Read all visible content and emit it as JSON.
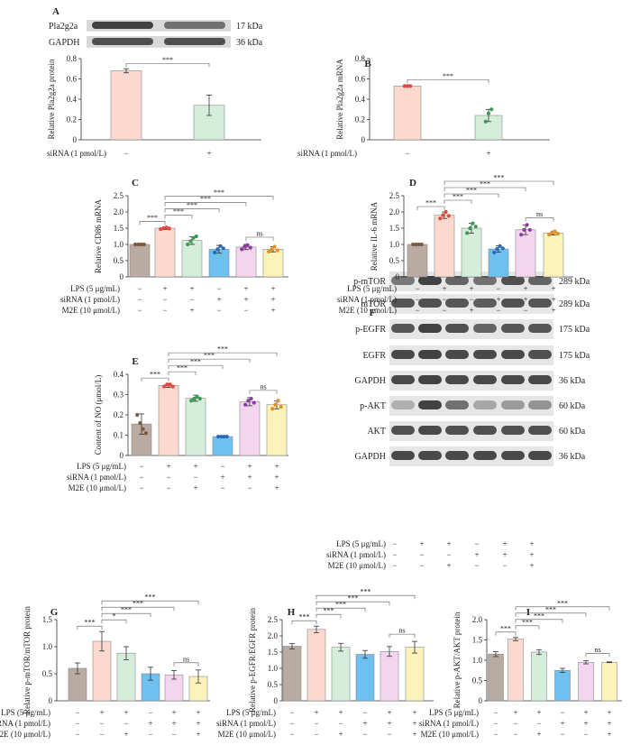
{
  "colors": {
    "ctrl": "#b9aba1",
    "lps": "#fbd9cf",
    "lps_m2e": "#d5eddb",
    "sirna": "#6ec0ee",
    "sirna_lps": "#f3d6ee",
    "sirna_lps_m2e": "#fbf3b9",
    "bracket": "#555555"
  },
  "panel_labels": {
    "A": "A",
    "B": "B",
    "C": "C",
    "D": "D",
    "E": "E",
    "F": "F",
    "G": "G",
    "H": "H",
    "I": "I"
  },
  "blot_A": {
    "bands": [
      {
        "label": "Pla2g2a",
        "kda": "17 kDa"
      },
      {
        "label": "GAPDH",
        "kda": "36 kDa"
      }
    ]
  },
  "blot_F": {
    "bands": [
      {
        "label": "p-mTOR",
        "kda": "289 kDa"
      },
      {
        "label": "mTOR",
        "kda": "289 kDa"
      },
      {
        "label": "p-EGFR",
        "kda": "175 kDa"
      },
      {
        "label": "EGFR",
        "kda": "175 kDa"
      },
      {
        "label": "GAPDH",
        "kda": "36 kDa"
      },
      {
        "label": "p-AKT",
        "kda": "60 kDa"
      },
      {
        "label": "AKT",
        "kda": "60 kDa"
      },
      {
        "label": "GAPDH",
        "kda": "36 kDa"
      }
    ]
  },
  "condition_rows": {
    "sirna_only": {
      "label": "siRNA (1 pmol/L)",
      "signs": [
        "−",
        "+"
      ]
    },
    "six": [
      {
        "label": "LPS (5 μg/mL)",
        "signs": [
          "−",
          "+",
          "+",
          "−",
          "+",
          "+"
        ]
      },
      {
        "label": "siRNA (1 pmol/L)",
        "signs": [
          "−",
          "−",
          "−",
          "+",
          "+",
          "+"
        ]
      },
      {
        "label": "M2E (10 μmol/L)",
        "signs": [
          "−",
          "−",
          "+",
          "−",
          "−",
          "+"
        ]
      }
    ]
  },
  "chart_data": [
    {
      "id": "A",
      "type": "bar",
      "ylabel": "Relative Pla2g2a protein",
      "ylim": [
        0,
        0.8
      ],
      "yticks": [
        0,
        0.2,
        0.4,
        0.6,
        0.8
      ],
      "yticklabels": [
        "0",
        "0.2",
        "0.4",
        "0.6",
        "0.8"
      ],
      "values": [
        0.68,
        0.34
      ],
      "errors": [
        0.02,
        0.1
      ],
      "points": [],
      "brackets": [
        {
          "from": 0,
          "to": 1,
          "label": "***"
        }
      ]
    },
    {
      "id": "B",
      "type": "bar",
      "ylabel": "Relative Pla2g2a mRNA",
      "ylim": [
        0,
        0.8
      ],
      "yticks": [
        0,
        0.2,
        0.4,
        0.6,
        0.8
      ],
      "yticklabels": [
        "0",
        "0.2",
        "0.4",
        "0.6",
        "0.8"
      ],
      "values": [
        0.53,
        0.24
      ],
      "errors": [
        0.01,
        0.06
      ],
      "points": [
        [
          0.53,
          0.53,
          0.53
        ],
        [
          0.18,
          0.26,
          0.3
        ]
      ],
      "brackets": [
        {
          "from": 0,
          "to": 1,
          "label": "***"
        }
      ]
    },
    {
      "id": "C",
      "type": "bar",
      "ylabel": "Relative CD86 mRNA",
      "ylim": [
        0,
        2.5
      ],
      "yticks": [
        0,
        0.5,
        1.0,
        1.5,
        2.0,
        2.5
      ],
      "yticklabels": [
        "0",
        "0.5",
        "1.0",
        "1.5",
        "2.0",
        "2.5"
      ],
      "values": [
        1.0,
        1.5,
        1.12,
        0.85,
        0.92,
        0.85
      ],
      "errors": [
        0.01,
        0.04,
        0.12,
        0.12,
        0.08,
        0.08
      ],
      "points": [
        [
          1,
          1,
          1,
          1
        ],
        [
          1.47,
          1.5,
          1.52,
          1.49
        ],
        [
          1.0,
          1.1,
          1.2,
          1.25
        ],
        [
          0.75,
          0.85,
          0.95,
          0.88
        ],
        [
          0.85,
          0.93,
          0.98,
          0.9
        ],
        [
          0.78,
          0.85,
          0.93,
          0.82
        ]
      ],
      "brackets": [
        {
          "from": 0,
          "to": 1,
          "label": "***"
        },
        {
          "from": 1,
          "to": 2,
          "label": "***"
        },
        {
          "from": 1,
          "to": 3,
          "label": "***"
        },
        {
          "from": 1,
          "to": 4,
          "label": "***"
        },
        {
          "from": 1,
          "to": 5,
          "label": "***"
        },
        {
          "from": 4,
          "to": 5,
          "label": "ns"
        }
      ]
    },
    {
      "id": "D",
      "type": "bar",
      "ylabel": "Relative IL-6 mRNA",
      "ylim": [
        0,
        2.5
      ],
      "yticks": [
        0,
        0.5,
        1.0,
        1.5,
        2.0,
        2.5
      ],
      "yticklabels": [
        "0",
        "0.5",
        "1.0",
        "1.5",
        "2.0",
        "2.5"
      ],
      "values": [
        1.0,
        1.9,
        1.5,
        0.86,
        1.45,
        1.35
      ],
      "errors": [
        0.01,
        0.1,
        0.15,
        0.1,
        0.15,
        0.06
      ],
      "points": [
        [
          1,
          1,
          1,
          1
        ],
        [
          1.8,
          1.9,
          2.0,
          1.88
        ],
        [
          1.35,
          1.5,
          1.65,
          1.55
        ],
        [
          0.75,
          0.86,
          0.95,
          0.88
        ],
        [
          1.3,
          1.45,
          1.6,
          1.45
        ],
        [
          1.3,
          1.36,
          1.4,
          1.33
        ]
      ],
      "brackets": [
        {
          "from": 0,
          "to": 1,
          "label": "***"
        },
        {
          "from": 1,
          "to": 2,
          "label": "***"
        },
        {
          "from": 1,
          "to": 3,
          "label": "***"
        },
        {
          "from": 1,
          "to": 4,
          "label": "***"
        },
        {
          "from": 1,
          "to": 5,
          "label": "***"
        },
        {
          "from": 4,
          "to": 5,
          "label": "ns"
        }
      ]
    },
    {
      "id": "E",
      "type": "bar",
      "ylabel": "Content of NO (μmol/L)",
      "ylim": [
        0,
        0.4
      ],
      "yticks": [
        0,
        0.1,
        0.2,
        0.3,
        0.4
      ],
      "yticklabels": [
        "0",
        "0.1",
        "0.2",
        "0.3",
        "0.4"
      ],
      "values": [
        0.155,
        0.345,
        0.282,
        0.093,
        0.265,
        0.25
      ],
      "errors": [
        0.05,
        0.01,
        0.015,
        0.003,
        0.02,
        0.02
      ],
      "points": [
        [
          0.2,
          0.16,
          0.13,
          0.11
        ],
        [
          0.34,
          0.35,
          0.35,
          0.34
        ],
        [
          0.27,
          0.28,
          0.29,
          0.28
        ],
        [
          0.093,
          0.093,
          0.093,
          0.093
        ],
        [
          0.25,
          0.27,
          0.28,
          0.26
        ],
        [
          0.23,
          0.25,
          0.27,
          0.24
        ]
      ],
      "brackets": [
        {
          "from": 0,
          "to": 1,
          "label": "***"
        },
        {
          "from": 1,
          "to": 2,
          "label": "***"
        },
        {
          "from": 1,
          "to": 3,
          "label": "***"
        },
        {
          "from": 1,
          "to": 4,
          "label": "***"
        },
        {
          "from": 1,
          "to": 5,
          "label": "***"
        },
        {
          "from": 4,
          "to": 5,
          "label": "ns"
        }
      ]
    },
    {
      "id": "G",
      "type": "bar",
      "ylabel": "Relative p-mTOR/mTOR protein",
      "ylim": [
        0,
        1.5
      ],
      "yticks": [
        0,
        0.5,
        1.0,
        1.5
      ],
      "yticklabels": [
        "0",
        "0.5",
        "1.0",
        "1.5"
      ],
      "values": [
        0.6,
        1.1,
        0.88,
        0.5,
        0.48,
        0.45
      ],
      "errors": [
        0.1,
        0.18,
        0.12,
        0.12,
        0.08,
        0.12
      ],
      "points": [],
      "brackets": [
        {
          "from": 0,
          "to": 1,
          "label": "***"
        },
        {
          "from": 1,
          "to": 2,
          "label": "*"
        },
        {
          "from": 1,
          "to": 3,
          "label": "***"
        },
        {
          "from": 1,
          "to": 4,
          "label": "***"
        },
        {
          "from": 1,
          "to": 5,
          "label": "***"
        },
        {
          "from": 4,
          "to": 5,
          "label": "ns"
        }
      ]
    },
    {
      "id": "H",
      "type": "bar",
      "ylabel": "Relative p-EGFR/EGFR protein",
      "ylim": [
        0,
        2.5
      ],
      "yticks": [
        0,
        0.5,
        1.0,
        1.5,
        2.0,
        2.5
      ],
      "yticklabels": [
        "0",
        "0.5",
        "1.0",
        "1.5",
        "2.0",
        "2.5"
      ],
      "values": [
        1.68,
        2.2,
        1.65,
        1.43,
        1.52,
        1.65
      ],
      "errors": [
        0.08,
        0.1,
        0.12,
        0.12,
        0.15,
        0.18
      ],
      "points": [],
      "brackets": [
        {
          "from": 0,
          "to": 1,
          "label": "***"
        },
        {
          "from": 1,
          "to": 2,
          "label": "***"
        },
        {
          "from": 1,
          "to": 3,
          "label": "***"
        },
        {
          "from": 1,
          "to": 4,
          "label": "***"
        },
        {
          "from": 1,
          "to": 5,
          "label": "***"
        },
        {
          "from": 4,
          "to": 5,
          "label": "ns"
        }
      ]
    },
    {
      "id": "I",
      "type": "bar",
      "ylabel": "Relative p-AKT/AKT protein",
      "ylim": [
        0,
        2.0
      ],
      "yticks": [
        0,
        0.5,
        1.0,
        1.5,
        2.0
      ],
      "yticklabels": [
        "0",
        "0.5",
        "1.0",
        "1.5",
        "2.0"
      ],
      "values": [
        1.15,
        1.52,
        1.2,
        0.75,
        0.95,
        0.95
      ],
      "errors": [
        0.06,
        0.04,
        0.06,
        0.05,
        0.04,
        0.01
      ],
      "points": [],
      "brackets": [
        {
          "from": 0,
          "to": 1,
          "label": "***"
        },
        {
          "from": 1,
          "to": 2,
          "label": "***"
        },
        {
          "from": 1,
          "to": 3,
          "label": "***"
        },
        {
          "from": 1,
          "to": 4,
          "label": "***"
        },
        {
          "from": 1,
          "to": 5,
          "label": "***"
        },
        {
          "from": 4,
          "to": 5,
          "label": "ns"
        }
      ]
    }
  ]
}
